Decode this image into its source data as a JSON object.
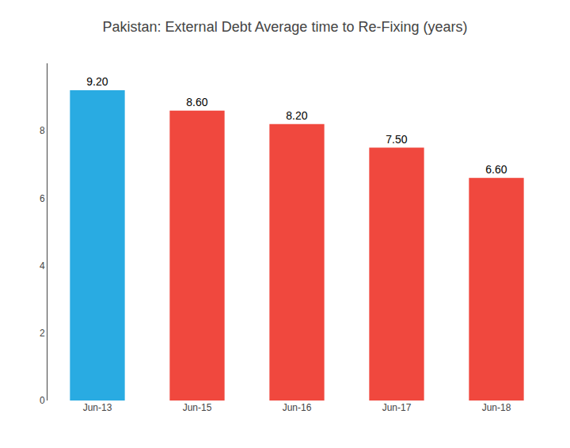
{
  "chart_data": {
    "type": "bar",
    "title": "Pakistan: External Debt Average time to Re-Fixing (years)",
    "categories": [
      "Jun-13",
      "Jun-15",
      "Jun-16",
      "Jun-17",
      "Jun-18"
    ],
    "values": [
      9.2,
      8.6,
      8.2,
      7.5,
      6.6
    ],
    "value_labels": [
      "9.20",
      "8.60",
      "8.20",
      "7.50",
      "6.60"
    ],
    "colors": [
      "#29ABE2",
      "#F0483E",
      "#F0483E",
      "#F0483E",
      "#F0483E"
    ],
    "ylim": [
      0,
      10
    ],
    "yticks": [
      0,
      2,
      4,
      6,
      8
    ],
    "grid": false,
    "data_labels": true
  }
}
